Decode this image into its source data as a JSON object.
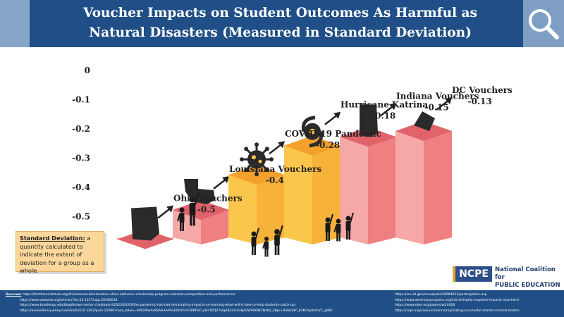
{
  "header": {
    "title": "Voucher Impacts on Student Outcomes As Harmful as Natural Disasters (Measured in Standard Deviation)"
  },
  "colors": {
    "header_band": "#1f4f86",
    "red_bar_front": "#f5a8a6",
    "red_bar_top": "#e0636a",
    "red_bar_side": "#f07f82",
    "orange_bar_front": "#fbc64c",
    "orange_bar_top": "#f3a12b",
    "orange_bar_side": "#f7b23a",
    "icon": "#2a2a2a"
  },
  "chart_data": {
    "type": "bar",
    "categories": [
      "Ohio Vouchers",
      "Louisiana Vouchers",
      "COVID-19 Pandemic",
      "Hurricane Katrina",
      "Indiana Vouchers",
      "DC Vouchers"
    ],
    "values": [
      -0.5,
      -0.4,
      -0.28,
      -0.18,
      -0.15,
      -0.13
    ],
    "value_labels": [
      "-0.5",
      "-0.4",
      "-0.28",
      "-0.18",
      "-0.15",
      "-0.13"
    ],
    "bar_colors": [
      "red",
      "red",
      "orange",
      "orange",
      "red",
      "red"
    ],
    "icons": [
      "ohio-map-icon",
      "louisiana-map-icon",
      "virus-icon",
      "hurricane-icon",
      "indiana-map-icon",
      "dc-map-icon"
    ],
    "y_ticks": [
      0,
      -0.1,
      -0.2,
      -0.3,
      -0.4,
      -0.5
    ],
    "y_tick_labels": [
      "0",
      "-0.1",
      "-0.2",
      "-0.3",
      "-0.4",
      "-0.5"
    ],
    "ylim": [
      -0.5,
      0
    ],
    "xlabel": "",
    "ylabel": "",
    "grid": false
  },
  "definition": {
    "term": "Standard Deviation:",
    "text": " a quantity calculated to indicate the extent of deviation for a group as a whole."
  },
  "logo": {
    "mark": "NCPE",
    "line1": "National Coalition for",
    "line2": "PUBLIC EDUCATION"
  },
  "sources": {
    "heading": "Sources:",
    "left": [
      "https://fordhaminstitute.org/ohio/research/evaluation-ohios-edchoice-scholarship-program-selection-competition-and-performance/",
      "https://www.aeaweb.org/articles?id=10.1257/app.20160634",
      "https://www.brookings.edu/blog/brown-center-chalkboard/2022/03/03/the-pandemic-has-had-devastating-impacts-on-learning-what-will-it-take-to-help-students-catch-up/",
      "https://onlinelibrary.wiley.com/doi/full/10.1002/pam.22086?casa_token=bW1MiwAs9SAAAAA%3AKtzFmC8tKPvF1ytH-fDQV7vIqABFz1cHHpLVWUb6WCNzK4_2Bje-l-4ldaGNY_K2KCAp0vfnV1_yB9E"
    ],
    "right": [
      "https://ies.ed.gov/ncee/pubs/20084023/participation.asp",
      "https://www.americanprogress.org/article/highly-negative-impacts-vouchers/",
      "https://www.nber.org/papers/w24428",
      "https://cepr.org/voxeu/columns/replicating-successful-charter-schools-boston"
    ]
  }
}
